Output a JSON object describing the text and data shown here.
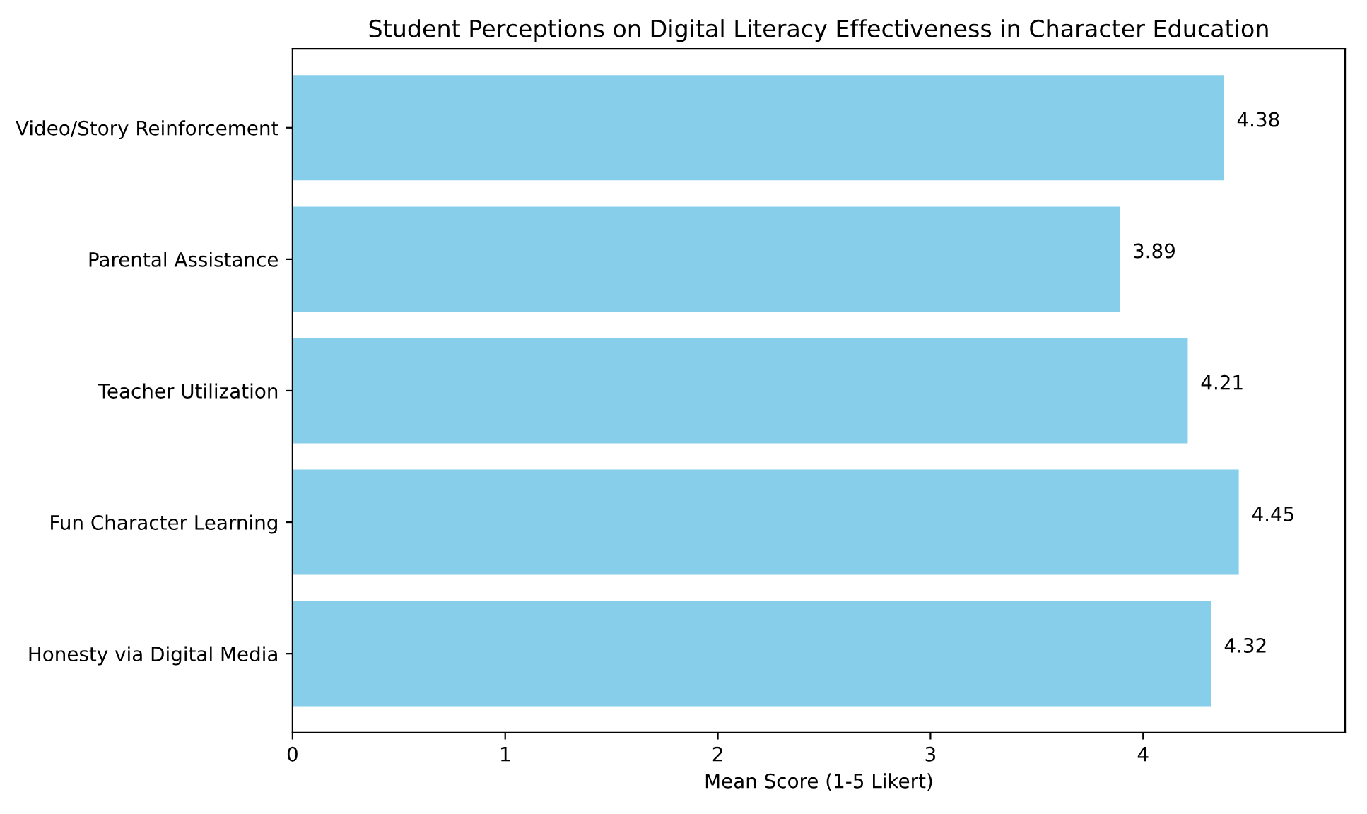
{
  "chart_data": {
    "type": "bar",
    "orientation": "horizontal",
    "title": "Student Perceptions on Digital Literacy Effectiveness in Character Education",
    "xlabel": "Mean Score (1-5 Likert)",
    "categories": [
      "Video/Story Reinforcement",
      "Parental Assistance",
      "Teacher Utilization",
      "Fun Character Learning",
      "Honesty via Digital Media"
    ],
    "values": [
      4.38,
      3.89,
      4.21,
      4.45,
      4.32
    ],
    "color": "#87ceeb",
    "xlim": [
      0,
      4.95
    ],
    "xticks": [
      0,
      1,
      2,
      3,
      4
    ],
    "data_labels": true,
    "grid": false
  }
}
